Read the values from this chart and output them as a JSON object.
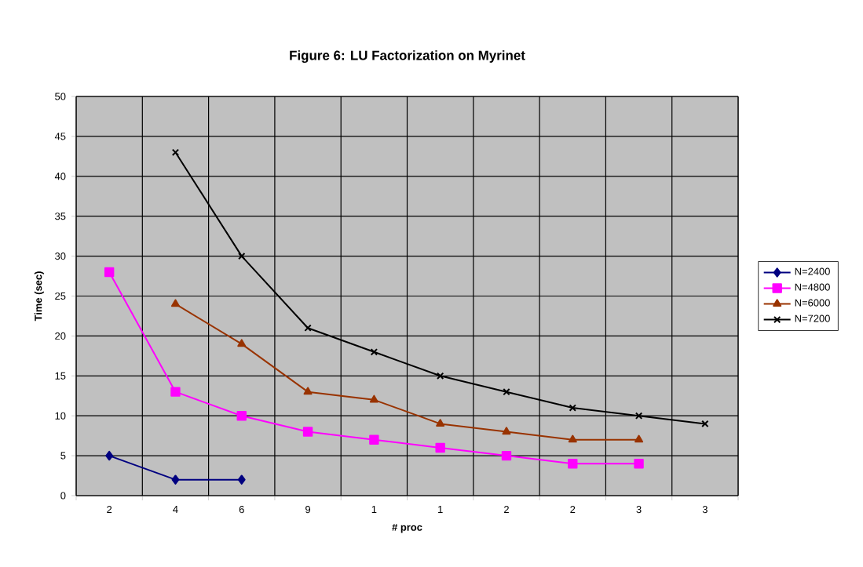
{
  "chart_data": {
    "type": "line",
    "title": "Figure 6: LU Factorization on Myrinet",
    "xlabel": "# proc",
    "ylabel": "Time (sec)",
    "categories": [
      "2",
      "4",
      "6",
      "9",
      "1",
      "1",
      "2",
      "2",
      "3",
      "3"
    ],
    "series": [
      {
        "name": "N=2400",
        "color": "#000080",
        "marker": "diamond",
        "values": [
          5,
          2,
          2,
          null,
          null,
          null,
          null,
          null,
          null,
          null
        ]
      },
      {
        "name": "N=4800",
        "color": "#ff00ff",
        "marker": "square",
        "values": [
          28,
          13,
          10,
          8,
          7,
          6,
          5,
          4,
          4,
          null
        ]
      },
      {
        "name": "N=6000",
        "color": "#993300",
        "marker": "triangle",
        "values": [
          null,
          24,
          19,
          13,
          12,
          9,
          8,
          7,
          7,
          null
        ]
      },
      {
        "name": "N=7200",
        "color": "#000000",
        "marker": "cross",
        "values": [
          null,
          43,
          30,
          21,
          18,
          15,
          13,
          11,
          10,
          9
        ]
      }
    ],
    "ylim": [
      0,
      50
    ],
    "yticks": [
      0,
      5,
      10,
      15,
      20,
      25,
      30,
      35,
      40,
      45,
      50
    ],
    "grid": true,
    "legend": "right",
    "line_style": "solid"
  }
}
